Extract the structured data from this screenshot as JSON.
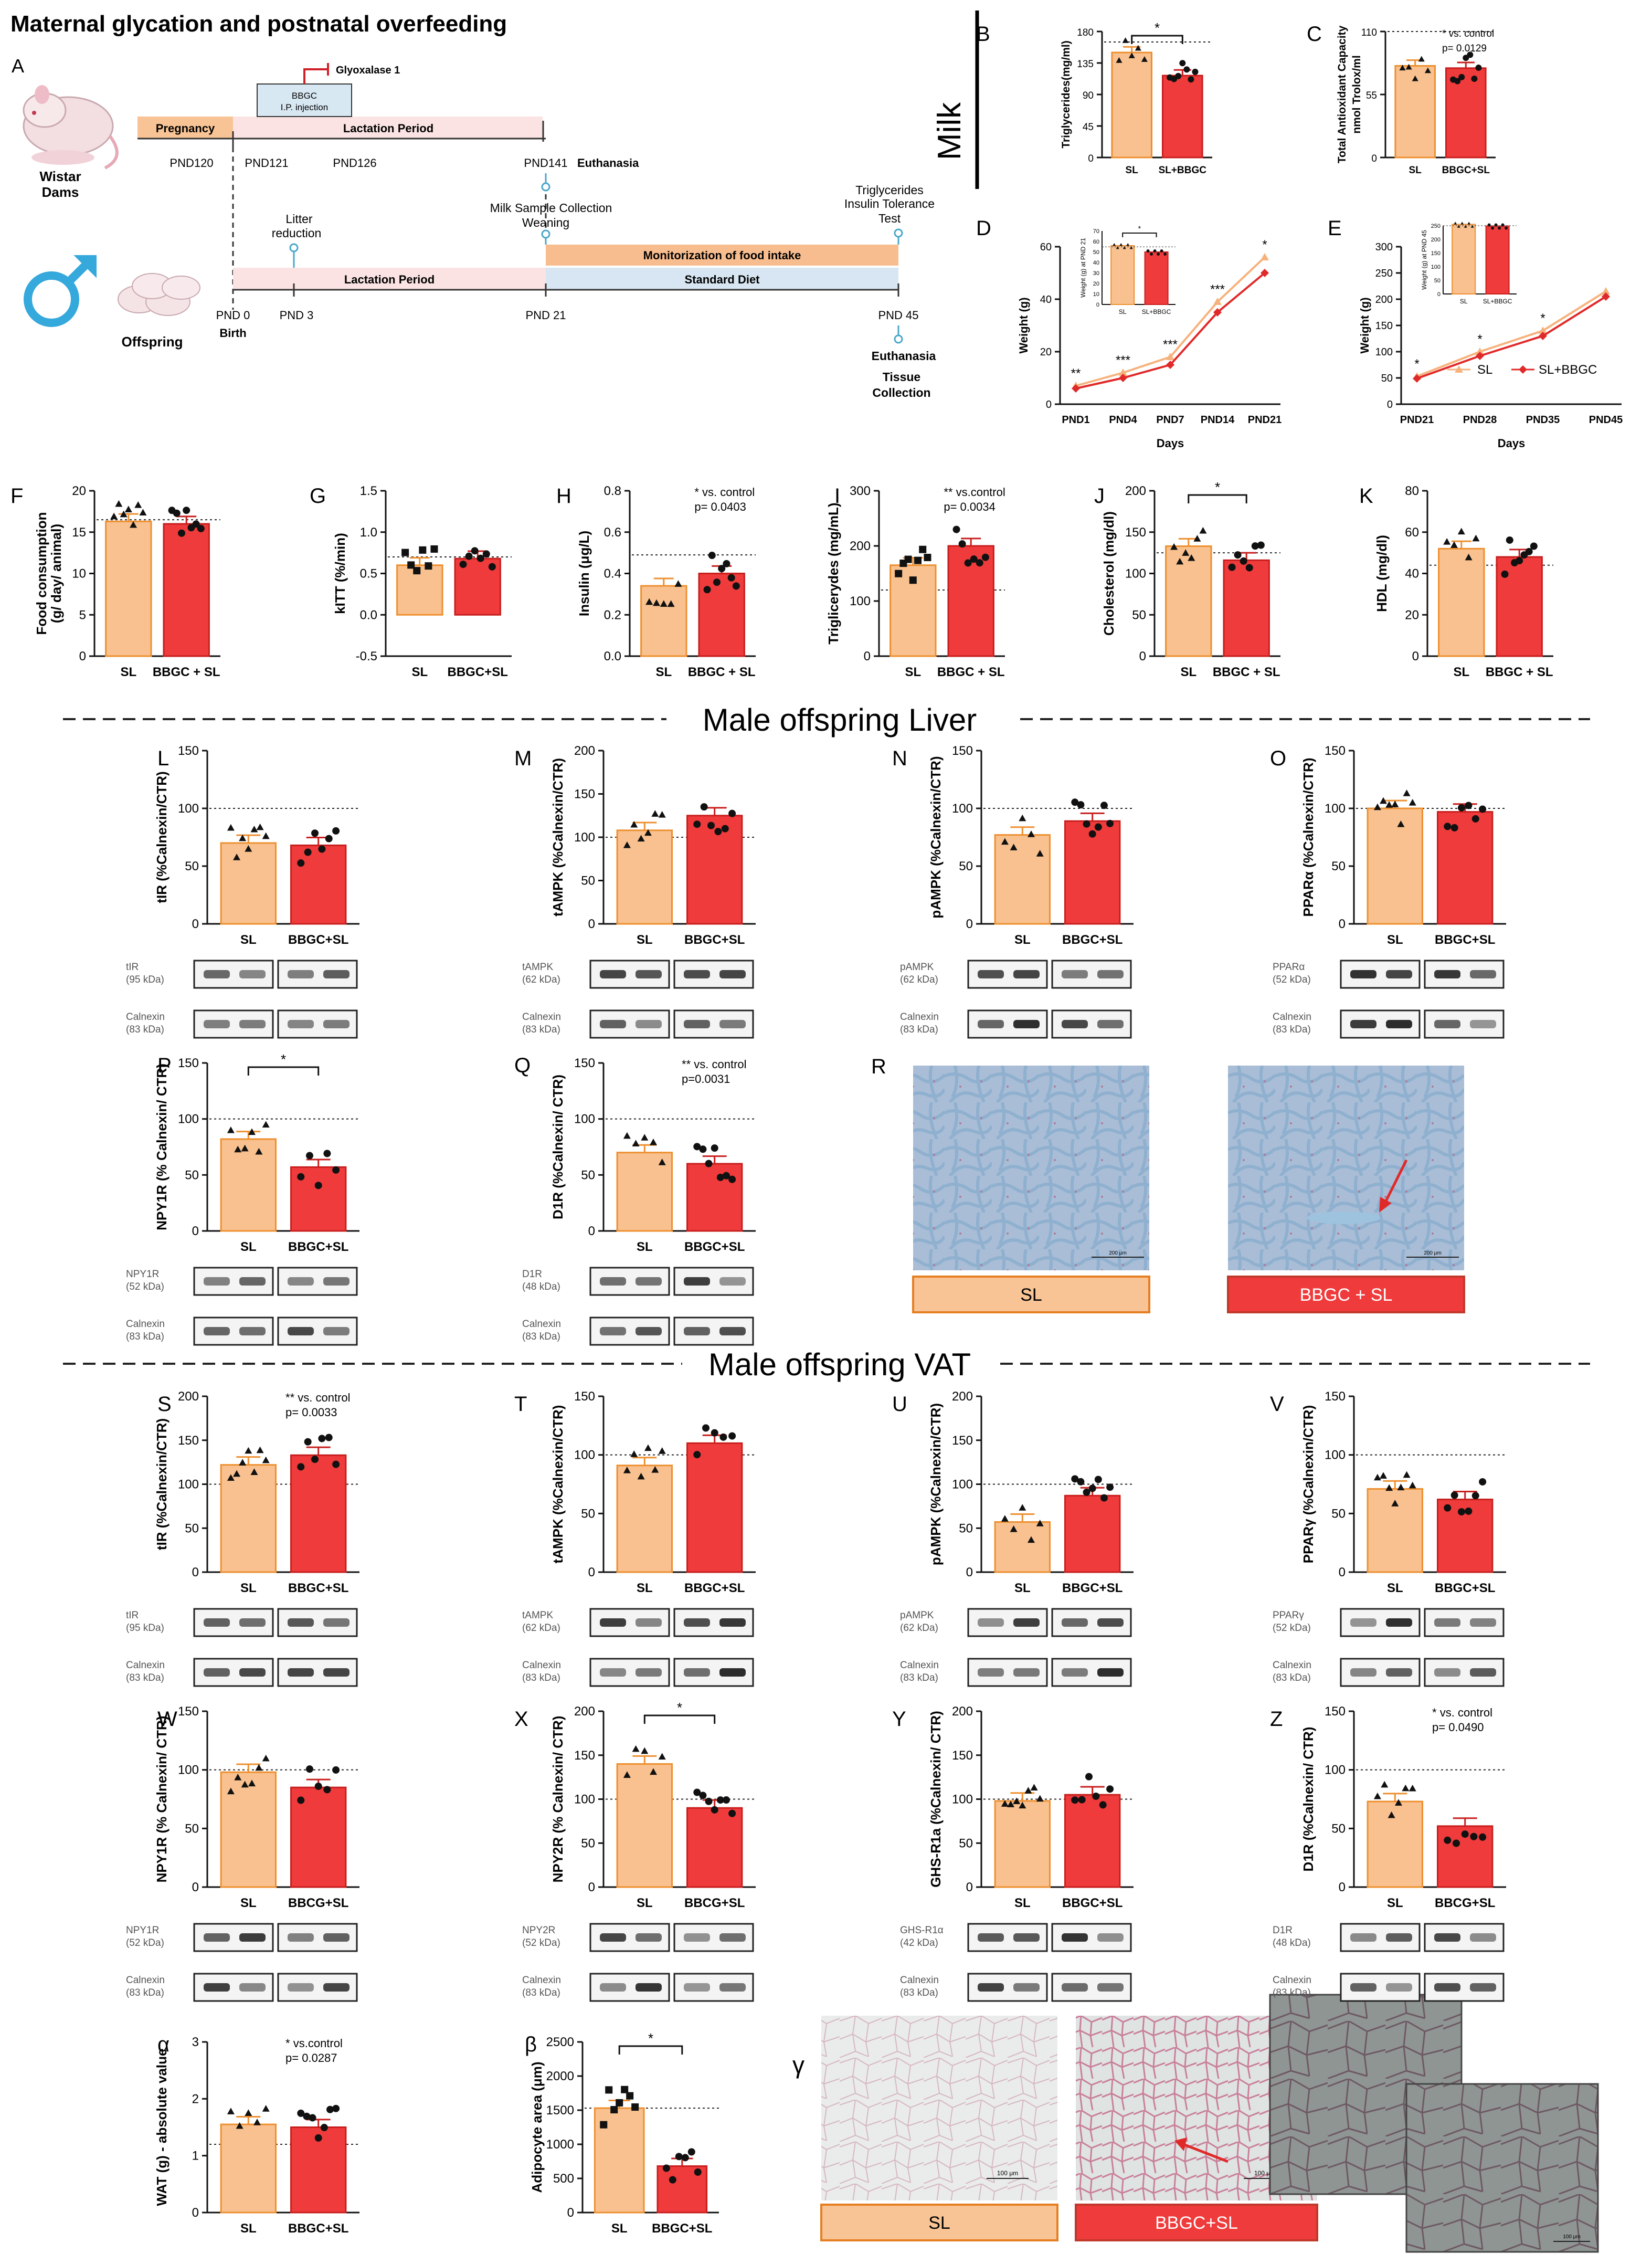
{
  "header": {
    "title": "Maternal glycation and postnatal overfeeding",
    "milk_label": "Milk"
  },
  "timeline": {
    "panel": "A",
    "dams_label_1": "Wistar",
    "dams_label_2": "Dams",
    "offspring_label": "Offspring",
    "pregnancy": "Pregnancy",
    "lactation_top": "Lactation Period",
    "lactation_bottom": "Lactation Period",
    "standard_diet": "Standard Diet",
    "monitorization": "Monitorization of food intake",
    "glyoxalase": "Glyoxalase 1",
    "bbgc_1": "BBGC",
    "bbgc_2": "I.P. injection",
    "pnd120": "PND120",
    "pnd121": "PND121",
    "pnd126": "PND126",
    "pnd141": "PND141",
    "euthanasia_top": "Euthanasia",
    "milk_sample_1": "Milk Sample Collection",
    "milk_sample_2": "Weaning",
    "litter_1": "Litter",
    "litter_2": "reduction",
    "trig_1": "Triglycerides",
    "trig_2": "Insulin Tolerance",
    "trig_3": "Test",
    "pnd0": "PND 0",
    "birth": "Birth",
    "pnd3": "PND 3",
    "pnd21": "PND 21",
    "pnd45": "PND 45",
    "euthanasia_bottom": "Euthanasia",
    "tissue_1": "Tissue",
    "tissue_2": "Collection"
  },
  "sections": {
    "liver": "Male offspring Liver",
    "vat": "Male offspring VAT"
  },
  "histology": {
    "R": {
      "letter": "R",
      "sl": "SL",
      "bbgc": "BBGC + SL",
      "scale_sl": "200 μm",
      "scale_bbgc": "200 μm"
    },
    "gamma": {
      "letter": "γ",
      "sl": "SL",
      "bbgc": "BBGC+SL",
      "scale_sl": "100 μm",
      "scale_bbgc": "100 μm",
      "scale_inset": "100 μm"
    }
  },
  "line_panels": {
    "D": {
      "letter": "D",
      "ylabel": "Weight (g)",
      "xlabel": "Days",
      "categories": [
        "PND1",
        "PND4",
        "PND7",
        "PND14",
        "PND21"
      ],
      "yticks": [
        "0",
        "20",
        "40",
        "60"
      ],
      "ylim": [
        0,
        60
      ],
      "series": [
        {
          "name": "SL",
          "values": [
            7,
            12,
            18,
            39,
            56
          ]
        },
        {
          "name": "SL+BBGC",
          "values": [
            6,
            10,
            15,
            35,
            50
          ]
        }
      ],
      "stars": [
        "**",
        "***",
        "***",
        "***",
        "*"
      ],
      "inset": {
        "ylabel": "Weight (g) at PND 21",
        "yticks": [
          "0",
          "10",
          "20",
          "30",
          "40",
          "50",
          "60",
          "70"
        ],
        "categories": [
          "SL",
          "SL+BBGC"
        ],
        "values": [
          56,
          50
        ],
        "star": "*"
      }
    },
    "E": {
      "letter": "E",
      "ylabel": "Weight (g)",
      "xlabel": "Days",
      "categories": [
        "PND21",
        "PND28",
        "PND35",
        "PND45"
      ],
      "yticks": [
        "0",
        "50",
        "100",
        "150",
        "200",
        "250",
        "300"
      ],
      "ylim": [
        0,
        300
      ],
      "series": [
        {
          "name": "SL",
          "values": [
            53,
            100,
            140,
            215
          ]
        },
        {
          "name": "SL+BBGC",
          "values": [
            49,
            92,
            130,
            205
          ]
        }
      ],
      "stars": [
        "*",
        "*",
        "*",
        ""
      ],
      "legend": [
        "SL",
        "SL+BBGC"
      ],
      "inset": {
        "ylabel": "Weight (g) at PND 45",
        "yticks": [
          "0",
          "50",
          "100",
          "150",
          "200",
          "250"
        ],
        "categories": [
          "SL",
          "SL+BBGC"
        ],
        "values": [
          255,
          249
        ],
        "star": ""
      }
    }
  },
  "chart_data": [
    {
      "id": "B",
      "type": "bar",
      "ylabel": "Triglycerides(mg/ml)",
      "categories": [
        "SL",
        "SL+BBGC"
      ],
      "values": [
        150,
        117
      ],
      "ylim": [
        0,
        180
      ],
      "yticks": [
        "0",
        "45",
        "90",
        "135",
        "180"
      ],
      "ref": 165,
      "annot": "*",
      "annot_type": "bracket"
    },
    {
      "id": "C",
      "type": "bar",
      "ylabel": "Total Antioxidant Capacity nmol Trolox/ml",
      "categories": [
        "SL",
        "BBGC+SL"
      ],
      "values": [
        80,
        78
      ],
      "ylim": [
        0,
        110
      ],
      "yticks": [
        "0",
        "55",
        "110"
      ],
      "ref": 110,
      "annot": "* vs. control\np= 0.0129",
      "annot_type": "text"
    },
    {
      "id": "F",
      "type": "bar",
      "ylabel": "Food consumption (g/ day/ animal)",
      "categories": [
        "SL",
        "BBGC + SL"
      ],
      "values": [
        16.3,
        16.0
      ],
      "ylim": [
        0,
        20
      ],
      "yticks": [
        "0",
        "5",
        "10",
        "15",
        "20"
      ],
      "ref": 16.5,
      "annot": "",
      "annot_type": "none"
    },
    {
      "id": "G",
      "type": "bar",
      "ylabel": "kITT (%/min)",
      "categories": [
        "SL",
        "BBGC+SL"
      ],
      "values": [
        0.6,
        0.68
      ],
      "ylim": [
        -0.5,
        1.5
      ],
      "yticks": [
        "-0.5",
        "0.0",
        "0.5",
        "1.0",
        "1.5"
      ],
      "ref": 0.7,
      "annot": "",
      "annot_type": "none"
    },
    {
      "id": "H",
      "type": "bar",
      "ylabel": "Insulin (μg/L)",
      "categories": [
        "SL",
        "BBGC + SL"
      ],
      "values": [
        0.34,
        0.4
      ],
      "ylim": [
        0,
        0.8
      ],
      "yticks": [
        "0.0",
        "0.2",
        "0.4",
        "0.6",
        "0.8"
      ],
      "ref": 0.49,
      "annot": "* vs. control\np= 0.0403",
      "annot_type": "text"
    },
    {
      "id": "I",
      "type": "bar",
      "ylabel": "Triglicerydes (mg/mL)",
      "categories": [
        "SL",
        "BBGC + SL"
      ],
      "values": [
        165,
        200
      ],
      "ylim": [
        0,
        300
      ],
      "yticks": [
        "0",
        "100",
        "200",
        "300"
      ],
      "ref": 120,
      "annot": "** vs.control\np= 0.0034",
      "annot_type": "text"
    },
    {
      "id": "J",
      "type": "bar",
      "ylabel": "Cholesterol (mg/dl)",
      "categories": [
        "SL",
        "BBGC + SL"
      ],
      "values": [
        133,
        116
      ],
      "ylim": [
        0,
        200
      ],
      "yticks": [
        "0",
        "50",
        "100",
        "150",
        "200"
      ],
      "ref": 125,
      "annot": "*",
      "annot_type": "bracket"
    },
    {
      "id": "K",
      "type": "bar",
      "ylabel": "HDL (mg/dl)",
      "categories": [
        "SL",
        "BBGC + SL"
      ],
      "values": [
        52,
        48
      ],
      "ylim": [
        0,
        80
      ],
      "yticks": [
        "0",
        "20",
        "40",
        "60",
        "80"
      ],
      "ref": 44,
      "annot": "",
      "annot_type": "none"
    },
    {
      "id": "L",
      "type": "bar",
      "ylabel": "tIR (%Calnexin/CTR)",
      "categories": [
        "SL",
        "BBGC+SL"
      ],
      "values": [
        70,
        68
      ],
      "ylim": [
        0,
        150
      ],
      "yticks": [
        "0",
        "50",
        "100",
        "150"
      ],
      "ref": 100,
      "annot": "",
      "annot_type": "none",
      "blot": {
        "band1": "tIR",
        "kda1": "(95 kDa)",
        "band2": "Calnexin",
        "kda2": "(83 kDa)"
      }
    },
    {
      "id": "M",
      "type": "bar",
      "ylabel": "tAMPK (%Calnexin/CTR)",
      "categories": [
        "SL",
        "BBGC+SL"
      ],
      "values": [
        108,
        125
      ],
      "ylim": [
        0,
        200
      ],
      "yticks": [
        "0",
        "50",
        "100",
        "150",
        "200"
      ],
      "ref": 100,
      "annot": "",
      "annot_type": "none",
      "blot": {
        "band1": "tAMPK",
        "kda1": "(62 kDa)",
        "band2": "Calnexin",
        "kda2": "(83 kDa)"
      }
    },
    {
      "id": "N",
      "type": "bar",
      "ylabel": "pAMPK (%Calnexin/CTR)",
      "categories": [
        "SL",
        "BBGC+SL"
      ],
      "values": [
        77,
        89
      ],
      "ylim": [
        0,
        150
      ],
      "yticks": [
        "0",
        "50",
        "100",
        "150"
      ],
      "ref": 100,
      "annot": "",
      "annot_type": "none",
      "blot": {
        "band1": "pAMPK",
        "kda1": "(62 kDa)",
        "band2": "Calnexin",
        "kda2": "(83 kDa)"
      }
    },
    {
      "id": "O",
      "type": "bar",
      "ylabel": "PPARα (%Calnexin/CTR)",
      "categories": [
        "SL",
        "BBGC+SL"
      ],
      "values": [
        100,
        97
      ],
      "ylim": [
        0,
        150
      ],
      "yticks": [
        "0",
        "50",
        "100",
        "150"
      ],
      "ref": 100,
      "annot": "",
      "annot_type": "none",
      "blot": {
        "band1": "PPARα",
        "kda1": "(52 kDa)",
        "band2": "Calnexin",
        "kda2": "(83 kDa)"
      }
    },
    {
      "id": "P",
      "type": "bar",
      "ylabel": "NPY1R (% Calnexin/ CTR)",
      "categories": [
        "SL",
        "BBGC+SL"
      ],
      "values": [
        82,
        57
      ],
      "ylim": [
        0,
        150
      ],
      "yticks": [
        "0",
        "50",
        "100",
        "150"
      ],
      "ref": 100,
      "annot": "*",
      "annot_type": "bracket",
      "blot": {
        "band1": "NPY1R",
        "kda1": "(52 kDa)",
        "band2": "Calnexin",
        "kda2": "(83 kDa)"
      }
    },
    {
      "id": "Q",
      "type": "bar",
      "ylabel": "D1R (%Calnexin/ CTR)",
      "categories": [
        "SL",
        "BBGC+SL"
      ],
      "values": [
        70,
        60
      ],
      "ylim": [
        0,
        150
      ],
      "yticks": [
        "0",
        "50",
        "100",
        "150"
      ],
      "ref": 100,
      "annot": "** vs. control\np=0.0031",
      "annot_type": "text",
      "blot": {
        "band1": "D1R",
        "kda1": "(48 kDa)",
        "band2": "Calnexin",
        "kda2": "(83 kDa)"
      }
    },
    {
      "id": "S",
      "type": "bar",
      "ylabel": "tIR (%Calnexin/CTR)",
      "categories": [
        "SL",
        "BBGC+SL"
      ],
      "values": [
        122,
        133
      ],
      "ylim": [
        0,
        200
      ],
      "yticks": [
        "0",
        "50",
        "100",
        "150",
        "200"
      ],
      "ref": 100,
      "annot": "** vs. control\np= 0.0033",
      "annot_type": "text",
      "blot": {
        "band1": "tIR",
        "kda1": "(95 kDa)",
        "band2": "Calnexin",
        "kda2": "(83 kDa)"
      }
    },
    {
      "id": "T",
      "type": "bar",
      "ylabel": "tAMPK (%Calnexin/CTR)",
      "categories": [
        "SL",
        "BBGC+SL"
      ],
      "values": [
        91,
        110
      ],
      "ylim": [
        0,
        150
      ],
      "yticks": [
        "0",
        "50",
        "100",
        "150"
      ],
      "ref": 100,
      "annot": "",
      "annot_type": "none",
      "blot": {
        "band1": "tAMPK",
        "kda1": "(62 kDa)",
        "band2": "Calnexin",
        "kda2": "(83 kDa)"
      }
    },
    {
      "id": "U",
      "type": "bar",
      "ylabel": "pAMPK (%Calnexin/CTR)",
      "categories": [
        "SL",
        "BBGC+SL"
      ],
      "values": [
        57,
        87
      ],
      "ylim": [
        0,
        200
      ],
      "yticks": [
        "0",
        "50",
        "100",
        "150",
        "200"
      ],
      "ref": 100,
      "annot": "",
      "annot_type": "none",
      "blot": {
        "band1": "pAMPK",
        "kda1": "(62 kDa)",
        "band2": "Calnexin",
        "kda2": "(83 kDa)"
      }
    },
    {
      "id": "V",
      "type": "bar",
      "ylabel": "PPARγ (%Calnexin/CTR)",
      "categories": [
        "SL",
        "BBGC+SL"
      ],
      "values": [
        71,
        62
      ],
      "ylim": [
        0,
        150
      ],
      "yticks": [
        "0",
        "50",
        "100",
        "150"
      ],
      "ref": 100,
      "annot": "",
      "annot_type": "none",
      "blot": {
        "band1": "PPARγ",
        "kda1": "(52 kDa)",
        "band2": "Calnexin",
        "kda2": "(83 kDa)"
      }
    },
    {
      "id": "W",
      "type": "bar",
      "ylabel": "NPY1R (% Calnexin/ CTR)",
      "categories": [
        "SL",
        "BBCG+SL"
      ],
      "values": [
        98,
        85
      ],
      "ylim": [
        0,
        150
      ],
      "yticks": [
        "0",
        "50",
        "100",
        "150"
      ],
      "ref": 100,
      "annot": "",
      "annot_type": "none",
      "blot": {
        "band1": "NPY1R",
        "kda1": "(52 kDa)",
        "band2": "Calnexin",
        "kda2": "(83 kDa)"
      }
    },
    {
      "id": "X",
      "type": "bar",
      "ylabel": "NPY2R (% Calnexin/ CTR)",
      "categories": [
        "SL",
        "BBCG+SL"
      ],
      "values": [
        140,
        90
      ],
      "ylim": [
        0,
        200
      ],
      "yticks": [
        "0",
        "50",
        "100",
        "150",
        "200"
      ],
      "ref": 100,
      "annot": "*",
      "annot_type": "bracket",
      "blot": {
        "band1": "NPY2R",
        "kda1": "(52 kDa)",
        "band2": "Calnexin",
        "kda2": "(83 kDa)"
      }
    },
    {
      "id": "Y",
      "type": "bar",
      "ylabel": "GHS-R1a (%Calnexin/ CTR)",
      "categories": [
        "SL",
        "BBGC+SL"
      ],
      "values": [
        98,
        105
      ],
      "ylim": [
        0,
        200
      ],
      "yticks": [
        "0",
        "50",
        "100",
        "150",
        "200"
      ],
      "ref": 100,
      "annot": "",
      "annot_type": "none",
      "blot": {
        "band1": "GHS-R1α",
        "kda1": "(42 kDa)",
        "band2": "Calnexin",
        "kda2": "(83 kDa)"
      }
    },
    {
      "id": "Z",
      "type": "bar",
      "ylabel": "D1R (%Calnexin/ CTR)",
      "categories": [
        "SL",
        "BBCG+SL"
      ],
      "values": [
        73,
        52
      ],
      "ylim": [
        0,
        150
      ],
      "yticks": [
        "0",
        "50",
        "100",
        "150"
      ],
      "ref": 100,
      "annot": "* vs. control\np= 0.0490",
      "annot_type": "text",
      "blot": {
        "band1": "D1R",
        "kda1": "(48 kDa)",
        "band2": "Calnexin",
        "kda2": "(83 kDa)"
      }
    },
    {
      "id": "α",
      "type": "bar",
      "ylabel": "WAT (g) - absolute value",
      "categories": [
        "SL",
        "BBGC+SL"
      ],
      "values": [
        1.55,
        1.5
      ],
      "ylim": [
        0,
        3
      ],
      "yticks": [
        "0",
        "1",
        "2",
        "3"
      ],
      "ref": 1.2,
      "annot": "* vs.control\np= 0.0287",
      "annot_type": "text"
    },
    {
      "id": "β",
      "type": "bar",
      "ylabel": "Adipocyte area (μm)",
      "categories": [
        "SL",
        "BBGC+SL"
      ],
      "values": [
        1530,
        680
      ],
      "ylim": [
        0,
        2500
      ],
      "yticks": [
        "0",
        "500",
        "1000",
        "1500",
        "2000",
        "2500"
      ],
      "ref": 1530,
      "annot": "*",
      "annot_type": "bracket"
    }
  ]
}
